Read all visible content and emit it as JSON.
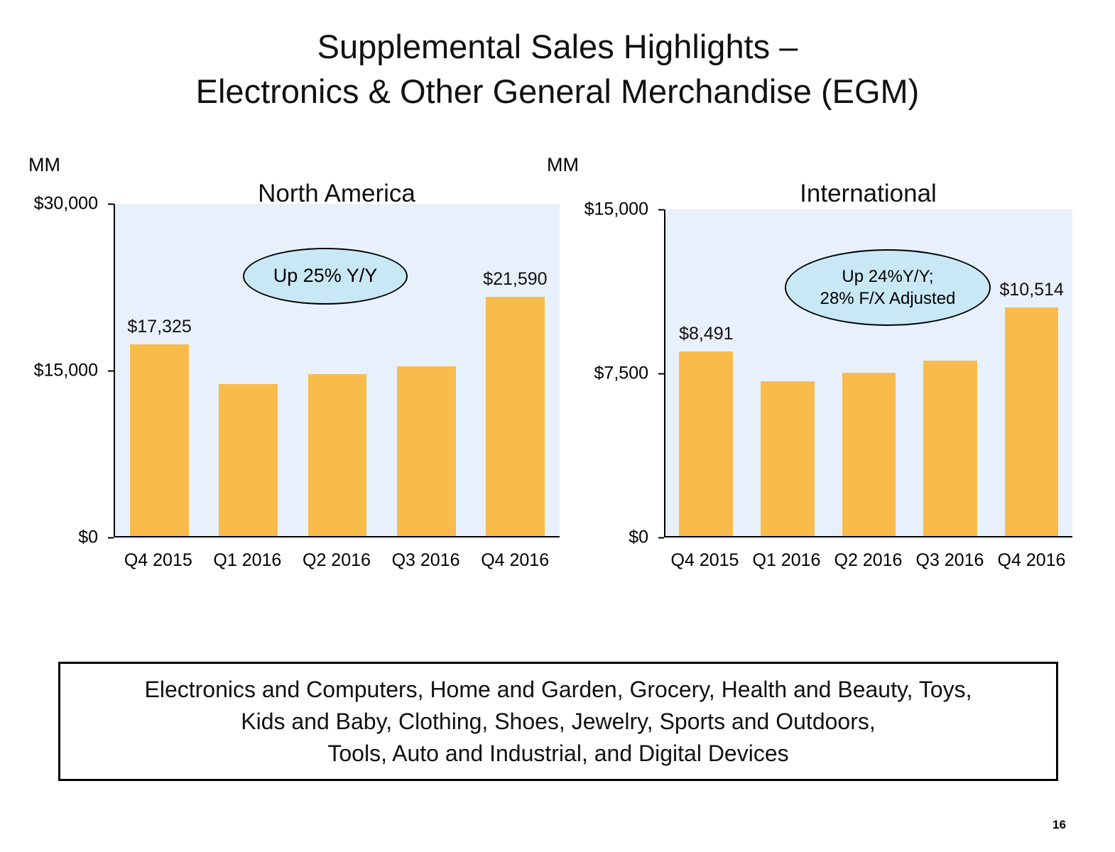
{
  "slide": {
    "title": {
      "line1": "Supplemental Sales Highlights –",
      "line2": "Electronics & Other General Merchandise (EGM)"
    },
    "footer_box": {
      "lines": {
        "0": "Electronics and Computers, Home and Garden, Grocery, Health and Beauty, Toys,",
        "1": "Kids and Baby, Clothing, Shoes, Jewelry, Sports and Outdoors,",
        "2": "Tools, Auto and Industrial, and Digital Devices"
      }
    },
    "page_number": "16"
  },
  "chart_data": [
    {
      "type": "bar",
      "title": "North America",
      "units_label": "MM",
      "categories": [
        "Q4 2015",
        "Q1 2016",
        "Q2 2016",
        "Q3 2016",
        "Q4 2016"
      ],
      "values": [
        17325,
        13700,
        14600,
        15350,
        21590
      ],
      "data_labels": [
        "$17,325",
        null,
        null,
        null,
        "$21,590"
      ],
      "ylim": [
        0,
        30000
      ],
      "yticks": [
        "$30,000",
        "$15,000",
        "$0"
      ],
      "annotation": {
        "lines": [
          "Up 25% Y/Y"
        ],
        "fill": "#C9E8F6"
      },
      "bar_color": "#F9BC4A",
      "plot_bg": "#E8F1FB",
      "grid": false,
      "legend": false
    },
    {
      "type": "bar",
      "title": "International",
      "units_label": "MM",
      "categories": [
        "Q4 2015",
        "Q1 2016",
        "Q2 2016",
        "Q3 2016",
        "Q4 2016"
      ],
      "values": [
        8491,
        7100,
        7500,
        8050,
        10514
      ],
      "data_labels": [
        "$8,491",
        null,
        null,
        null,
        "$10,514"
      ],
      "ylim": [
        0,
        15000
      ],
      "yticks": [
        "$15,000",
        "$7,500",
        "$0"
      ],
      "annotation": {
        "lines": [
          "Up 24%Y/Y;",
          "28%  F/X Adjusted"
        ],
        "fill": "#C9E8F6"
      },
      "bar_color": "#F9BC4A",
      "plot_bg": "#E8F1FB",
      "grid": false,
      "legend": false
    }
  ]
}
